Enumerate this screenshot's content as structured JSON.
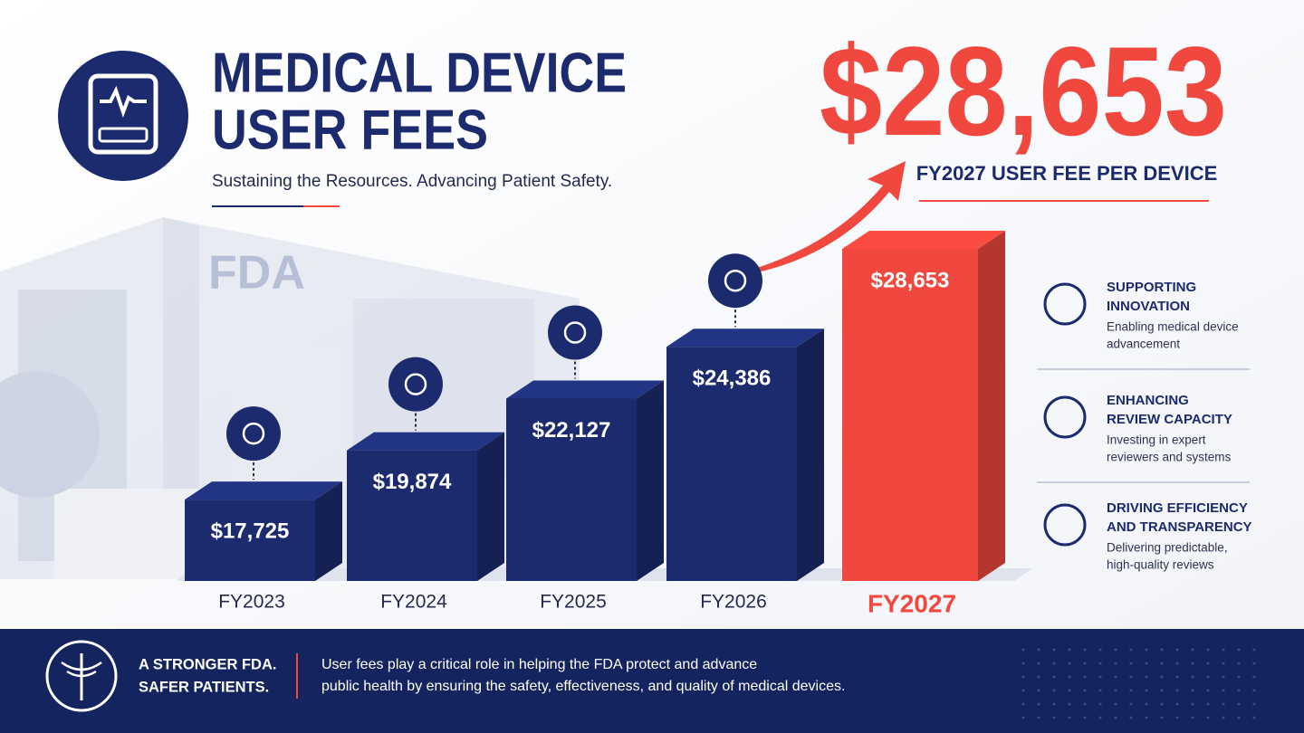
{
  "header": {
    "title": [
      "MEDICAL DEVICE",
      "USER FEES"
    ],
    "subtitle": "Sustaining the Resources. Advancing Patient Safety."
  },
  "headline": {
    "value": "$28,653",
    "label": "FY2027 USER FEE PER DEVICE"
  },
  "chart_data": {
    "type": "bar",
    "categories": [
      "FY2023",
      "FY2024",
      "FY2025",
      "FY2026",
      "FY2027"
    ],
    "values": [
      17725,
      19874,
      22127,
      24386,
      28653
    ],
    "value_labels": [
      "$17,725",
      "$19,874",
      "$22,127",
      "$24,386",
      "$28,653"
    ],
    "colors": [
      "#1c2b6e",
      "#1c2b6e",
      "#1c2b6e",
      "#1c2b6e",
      "#f0483e"
    ]
  },
  "features": [
    {
      "title": [
        "SUPPORTING",
        "INNOVATION"
      ],
      "description": [
        "Enabling medical device",
        "advancement"
      ]
    },
    {
      "title": [
        "ENHANCING",
        "REVIEW CAPACITY"
      ],
      "description": [
        "Investing in expert",
        "reviewers and systems"
      ]
    },
    {
      "title": [
        "DRIVING EFFICIENCY",
        "AND TRANSPARENCY"
      ],
      "description": [
        "Delivering predictable,",
        "high-quality reviews"
      ]
    }
  ],
  "footer": {
    "tagline": [
      "A STRONGER FDA.",
      "SAFER PATIENTS."
    ],
    "text": [
      "User fees play a critical role in helping the FDA protect and advance",
      "public health by ensuring the safety, effectiveness, and quality of medical devices."
    ]
  }
}
